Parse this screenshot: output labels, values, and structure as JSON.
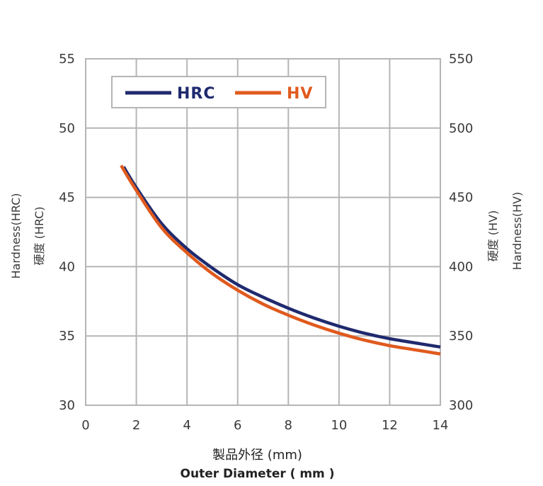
{
  "chart_data": {
    "type": "line",
    "xlabel_jp": "製品外径 (mm)",
    "xlabel_en": "Outer Diameter ( mm )",
    "ylabel_left_en": "Hardness(HRC)",
    "ylabel_left_jp": "硬度 (HRC)",
    "ylabel_right_jp": "硬度 (HV)",
    "ylabel_right_en": "Hardness(HV)",
    "xlim": [
      0,
      14
    ],
    "ylim_left": [
      30,
      55
    ],
    "ylim_right": [
      300,
      550
    ],
    "x_ticks": [
      "0",
      "2",
      "4",
      "6",
      "8",
      "10",
      "12",
      "14"
    ],
    "y_ticks_left": [
      "30",
      "35",
      "40",
      "45",
      "50",
      "55"
    ],
    "y_ticks_right": [
      "300",
      "350",
      "400",
      "450",
      "500",
      "550"
    ],
    "grid": true,
    "legend_position": "top-left",
    "series": [
      {
        "name": "HRC",
        "color": "#1f2a6e",
        "axis": "left",
        "x": [
          1.5,
          2,
          3,
          4,
          5,
          6,
          7,
          8,
          9,
          10,
          11,
          12,
          13,
          14
        ],
        "y": [
          47.2,
          45.7,
          43.1,
          41.3,
          39.9,
          38.7,
          37.8,
          37.0,
          36.3,
          35.7,
          35.2,
          34.8,
          34.5,
          34.2
        ]
      },
      {
        "name": "HV",
        "color": "#e05a1e",
        "axis": "right",
        "x": [
          1.4,
          2,
          3,
          4,
          5,
          6,
          7,
          8,
          9,
          10,
          11,
          12,
          13,
          14
        ],
        "y": [
          473,
          455,
          428,
          410,
          395,
          383,
          373,
          365,
          358,
          352,
          347,
          343,
          340,
          337
        ]
      }
    ]
  }
}
